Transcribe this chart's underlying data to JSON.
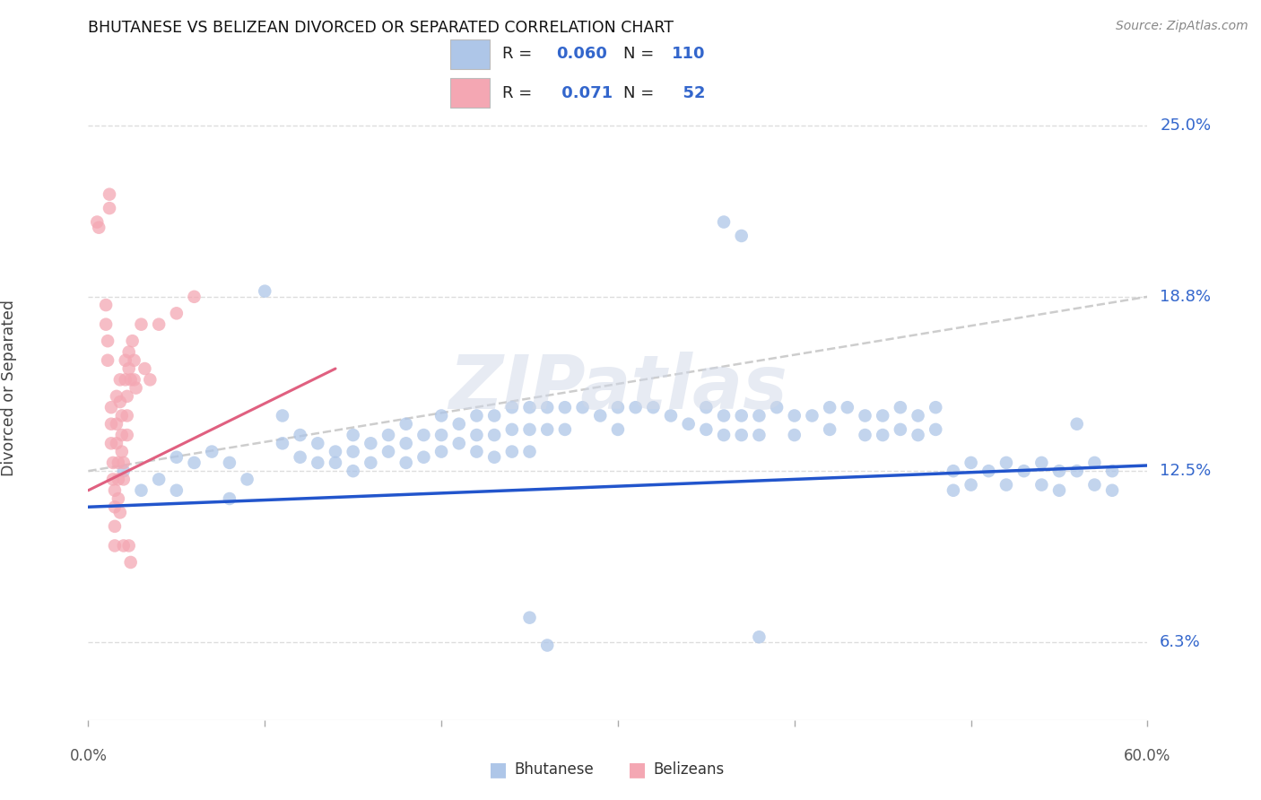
{
  "title": "BHUTANESE VS BELIZEAN DIVORCED OR SEPARATED CORRELATION CHART",
  "source": "Source: ZipAtlas.com",
  "ylabel": "Divorced or Separated",
  "ytick_labels": [
    "6.3%",
    "12.5%",
    "18.8%",
    "25.0%"
  ],
  "ytick_values": [
    0.063,
    0.125,
    0.188,
    0.25
  ],
  "xlim": [
    0.0,
    0.6
  ],
  "ylim": [
    0.035,
    0.275
  ],
  "blue_R": "0.060",
  "blue_N": "110",
  "pink_R": "0.071",
  "pink_N": "52",
  "blue_color": "#aec6e8",
  "pink_color": "#f4a7b3",
  "blue_line_color": "#2255cc",
  "pink_line_color": "#e06080",
  "gray_dash_color": "#c8c8c8",
  "legend_label_blue": "Bhutanese",
  "legend_label_pink": "Belizeans",
  "watermark": "ZIPatlas",
  "blue_points": [
    [
      0.02,
      0.125
    ],
    [
      0.03,
      0.118
    ],
    [
      0.04,
      0.122
    ],
    [
      0.05,
      0.13
    ],
    [
      0.05,
      0.118
    ],
    [
      0.06,
      0.128
    ],
    [
      0.07,
      0.132
    ],
    [
      0.08,
      0.128
    ],
    [
      0.08,
      0.115
    ],
    [
      0.09,
      0.122
    ],
    [
      0.1,
      0.19
    ],
    [
      0.11,
      0.145
    ],
    [
      0.11,
      0.135
    ],
    [
      0.12,
      0.138
    ],
    [
      0.12,
      0.13
    ],
    [
      0.13,
      0.135
    ],
    [
      0.13,
      0.128
    ],
    [
      0.14,
      0.132
    ],
    [
      0.14,
      0.128
    ],
    [
      0.15,
      0.138
    ],
    [
      0.15,
      0.132
    ],
    [
      0.15,
      0.125
    ],
    [
      0.16,
      0.135
    ],
    [
      0.16,
      0.128
    ],
    [
      0.17,
      0.138
    ],
    [
      0.17,
      0.132
    ],
    [
      0.18,
      0.142
    ],
    [
      0.18,
      0.135
    ],
    [
      0.18,
      0.128
    ],
    [
      0.19,
      0.138
    ],
    [
      0.19,
      0.13
    ],
    [
      0.2,
      0.145
    ],
    [
      0.2,
      0.138
    ],
    [
      0.2,
      0.132
    ],
    [
      0.21,
      0.142
    ],
    [
      0.21,
      0.135
    ],
    [
      0.22,
      0.145
    ],
    [
      0.22,
      0.138
    ],
    [
      0.22,
      0.132
    ],
    [
      0.23,
      0.145
    ],
    [
      0.23,
      0.138
    ],
    [
      0.23,
      0.13
    ],
    [
      0.24,
      0.148
    ],
    [
      0.24,
      0.14
    ],
    [
      0.24,
      0.132
    ],
    [
      0.25,
      0.148
    ],
    [
      0.25,
      0.14
    ],
    [
      0.25,
      0.132
    ],
    [
      0.26,
      0.148
    ],
    [
      0.26,
      0.14
    ],
    [
      0.27,
      0.148
    ],
    [
      0.27,
      0.14
    ],
    [
      0.28,
      0.148
    ],
    [
      0.29,
      0.145
    ],
    [
      0.3,
      0.148
    ],
    [
      0.3,
      0.14
    ],
    [
      0.31,
      0.148
    ],
    [
      0.32,
      0.148
    ],
    [
      0.33,
      0.145
    ],
    [
      0.34,
      0.142
    ],
    [
      0.35,
      0.148
    ],
    [
      0.35,
      0.14
    ],
    [
      0.36,
      0.145
    ],
    [
      0.36,
      0.138
    ],
    [
      0.37,
      0.145
    ],
    [
      0.37,
      0.138
    ],
    [
      0.38,
      0.145
    ],
    [
      0.38,
      0.138
    ],
    [
      0.39,
      0.148
    ],
    [
      0.4,
      0.145
    ],
    [
      0.4,
      0.138
    ],
    [
      0.41,
      0.145
    ],
    [
      0.42,
      0.148
    ],
    [
      0.42,
      0.14
    ],
    [
      0.43,
      0.148
    ],
    [
      0.44,
      0.145
    ],
    [
      0.44,
      0.138
    ],
    [
      0.45,
      0.145
    ],
    [
      0.45,
      0.138
    ],
    [
      0.46,
      0.148
    ],
    [
      0.46,
      0.14
    ],
    [
      0.47,
      0.145
    ],
    [
      0.47,
      0.138
    ],
    [
      0.48,
      0.148
    ],
    [
      0.48,
      0.14
    ],
    [
      0.49,
      0.125
    ],
    [
      0.49,
      0.118
    ],
    [
      0.5,
      0.128
    ],
    [
      0.5,
      0.12
    ],
    [
      0.51,
      0.125
    ],
    [
      0.52,
      0.128
    ],
    [
      0.52,
      0.12
    ],
    [
      0.53,
      0.125
    ],
    [
      0.54,
      0.128
    ],
    [
      0.54,
      0.12
    ],
    [
      0.55,
      0.125
    ],
    [
      0.55,
      0.118
    ],
    [
      0.56,
      0.125
    ],
    [
      0.57,
      0.128
    ],
    [
      0.57,
      0.12
    ],
    [
      0.58,
      0.125
    ],
    [
      0.58,
      0.118
    ],
    [
      0.36,
      0.215
    ],
    [
      0.37,
      0.21
    ],
    [
      0.25,
      0.072
    ],
    [
      0.26,
      0.062
    ],
    [
      0.38,
      0.065
    ],
    [
      0.56,
      0.142
    ]
  ],
  "pink_points": [
    [
      0.005,
      0.215
    ],
    [
      0.006,
      0.213
    ],
    [
      0.01,
      0.185
    ],
    [
      0.01,
      0.178
    ],
    [
      0.011,
      0.172
    ],
    [
      0.011,
      0.165
    ],
    [
      0.012,
      0.225
    ],
    [
      0.012,
      0.22
    ],
    [
      0.013,
      0.148
    ],
    [
      0.013,
      0.142
    ],
    [
      0.013,
      0.135
    ],
    [
      0.014,
      0.128
    ],
    [
      0.014,
      0.122
    ],
    [
      0.015,
      0.118
    ],
    [
      0.015,
      0.112
    ],
    [
      0.015,
      0.105
    ],
    [
      0.015,
      0.098
    ],
    [
      0.016,
      0.152
    ],
    [
      0.016,
      0.142
    ],
    [
      0.016,
      0.135
    ],
    [
      0.017,
      0.128
    ],
    [
      0.017,
      0.122
    ],
    [
      0.017,
      0.115
    ],
    [
      0.018,
      0.11
    ],
    [
      0.018,
      0.158
    ],
    [
      0.018,
      0.15
    ],
    [
      0.019,
      0.145
    ],
    [
      0.019,
      0.138
    ],
    [
      0.019,
      0.132
    ],
    [
      0.02,
      0.128
    ],
    [
      0.02,
      0.122
    ],
    [
      0.02,
      0.098
    ],
    [
      0.021,
      0.165
    ],
    [
      0.021,
      0.158
    ],
    [
      0.022,
      0.152
    ],
    [
      0.022,
      0.145
    ],
    [
      0.022,
      0.138
    ],
    [
      0.023,
      0.168
    ],
    [
      0.023,
      0.162
    ],
    [
      0.024,
      0.158
    ],
    [
      0.024,
      0.092
    ],
    [
      0.025,
      0.172
    ],
    [
      0.026,
      0.165
    ],
    [
      0.026,
      0.158
    ],
    [
      0.027,
      0.155
    ],
    [
      0.03,
      0.178
    ],
    [
      0.032,
      0.162
    ],
    [
      0.035,
      0.158
    ],
    [
      0.04,
      0.178
    ],
    [
      0.05,
      0.182
    ],
    [
      0.06,
      0.188
    ],
    [
      0.023,
      0.098
    ]
  ],
  "blue_trend": [
    0.0,
    0.6,
    0.112,
    0.127
  ],
  "pink_trend": [
    0.0,
    0.14,
    0.118,
    0.162
  ],
  "gray_trend": [
    0.0,
    0.6,
    0.125,
    0.188
  ]
}
